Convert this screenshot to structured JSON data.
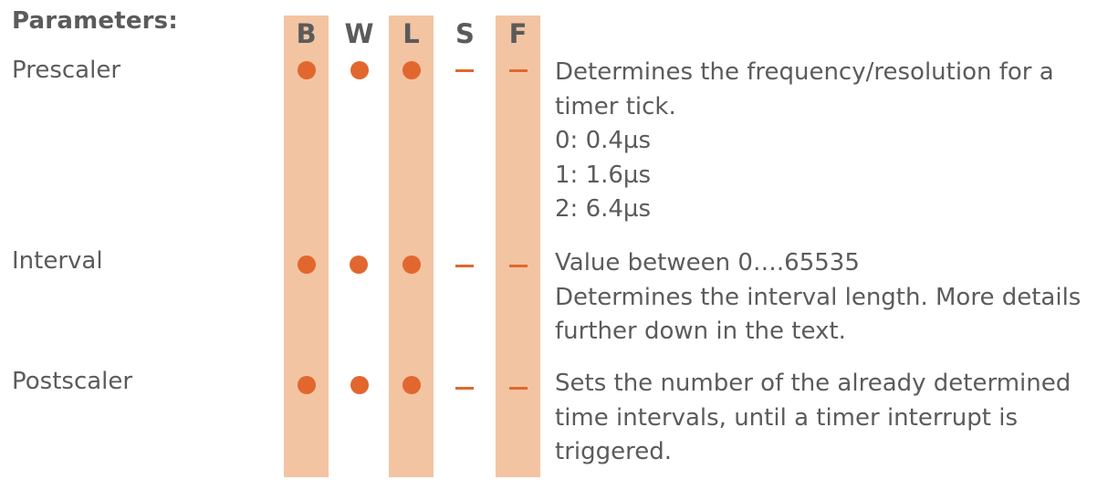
{
  "title": "Parameters:",
  "columns": [
    "B",
    "W",
    "L",
    "S",
    "F"
  ],
  "colors": {
    "highlight_band": "#f3c4a2",
    "marker": "#e2672f",
    "text": "#5b5b5b"
  },
  "rows": [
    {
      "name": "Prescaler",
      "markers": [
        "dot",
        "dot",
        "dot",
        "dash",
        "dash"
      ],
      "description_lines": [
        "Determines the frequency/resolution for a",
        "timer tick.",
        "0: 0.4µs",
        "1: 1.6µs",
        "2: 6.4µs"
      ]
    },
    {
      "name": "Interval",
      "markers": [
        "dot",
        "dot",
        "dot",
        "dash",
        "dash"
      ],
      "description_lines": [
        "Value between 0….65535",
        "Determines the interval length. More details",
        "further down in the text."
      ]
    },
    {
      "name": "Postscaler",
      "markers": [
        "dot",
        "dot",
        "dot",
        "dash",
        "dash"
      ],
      "description_lines": [
        "Sets the number of the already determined",
        "time intervals, until a timer interrupt is",
        "triggered."
      ]
    }
  ]
}
